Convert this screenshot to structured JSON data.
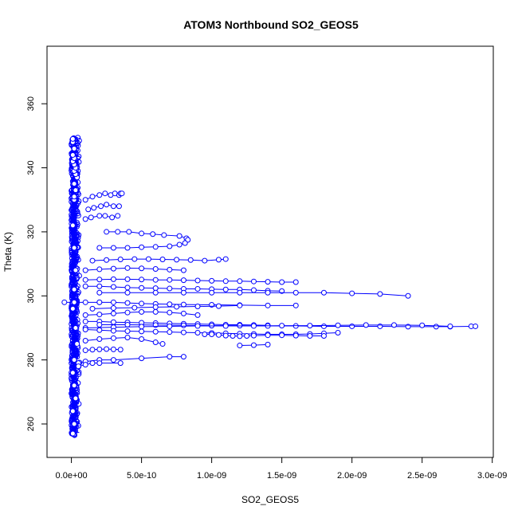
{
  "chart_data": {
    "type": "scatter",
    "title": "ATOM3 Northbound SO2_GEOS5",
    "xlabel": "SO2_GEOS5",
    "ylabel": "Theta (K)",
    "xlim": [
      -1.2e-10,
      3e-09
    ],
    "ylim": [
      249.5,
      378.5
    ],
    "xticks": [
      0,
      5e-10,
      1e-09,
      1.5e-09,
      2e-09,
      2.5e-09,
      3e-09
    ],
    "xtick_labels": [
      "0.0e+00",
      "5.0e-10",
      "1.0e-09",
      "1.5e-09",
      "2.0e-09",
      "2.5e-09",
      "3.0e-09"
    ],
    "yticks": [
      260,
      280,
      300,
      320,
      340,
      360
    ],
    "ytick_labels": [
      "260",
      "280",
      "300",
      "320",
      "340",
      "360"
    ],
    "grid": false,
    "legend": "none",
    "color": "#0000ff",
    "marker": "open-circle",
    "series": [
      {
        "x": [
          1e-11,
          2e-11,
          1e-11,
          3e-11,
          2e-11,
          1e-11,
          2e-11,
          4e-11,
          3e-11,
          1e-11,
          2e-11,
          3e-11,
          2e-11,
          1e-11,
          2e-11
        ],
        "y": [
          257,
          260,
          264,
          268,
          272,
          276,
          280,
          285,
          290,
          296,
          302,
          308,
          315,
          322,
          330
        ]
      },
      {
        "x": [
          2e-11,
          3e-11,
          2e-11,
          4e-11,
          3e-11,
          2e-11,
          3e-11,
          2e-11,
          1e-11,
          2e-11,
          1e-11,
          2e-11,
          1e-11,
          1e-11
        ],
        "y": [
          331,
          333,
          335,
          337,
          338,
          339,
          340,
          341,
          342,
          343,
          344,
          346,
          348,
          349
        ]
      },
      {
        "x": [
          1e-10,
          1.5e-10,
          2e-10,
          2.4e-10,
          2.8e-10,
          3.1e-10,
          3.4e-10,
          3.5e-10,
          3.6e-10
        ],
        "y": [
          330,
          331,
          331.5,
          332,
          331.5,
          332,
          331.5,
          332,
          332
        ]
      },
      {
        "x": [
          1.2e-10,
          1.6e-10,
          2.1e-10,
          2.5e-10,
          3e-10,
          3.4e-10
        ],
        "y": [
          327,
          327.5,
          328,
          328.5,
          328,
          328
        ]
      },
      {
        "x": [
          1e-10,
          1.4e-10,
          2e-10,
          2.4e-10,
          2.9e-10,
          3.3e-10
        ],
        "y": [
          324,
          324.5,
          325,
          325,
          324.5,
          325
        ]
      },
      {
        "x": [
          2.5e-10,
          3.3e-10,
          4.1e-10,
          5e-10,
          5.8e-10,
          6.6e-10,
          7.7e-10,
          8.2e-10,
          8.3e-10
        ],
        "y": [
          320,
          320,
          320,
          319.5,
          319.3,
          319,
          318.7,
          318,
          317.5
        ]
      },
      {
        "x": [
          2e-10,
          3e-10,
          4e-10,
          5e-10,
          6e-10,
          7e-10,
          7.7e-10,
          8.1e-10
        ],
        "y": [
          315,
          315,
          315,
          315.2,
          315.3,
          315.5,
          316,
          316.5
        ]
      },
      {
        "x": [
          1.5e-10,
          2.5e-10,
          3.5e-10,
          4.5e-10,
          5.5e-10,
          6.5e-10,
          7.5e-10,
          8.5e-10,
          9.5e-10,
          1.05e-09,
          1.1e-09
        ],
        "y": [
          311,
          311.2,
          311.4,
          311.5,
          311.5,
          311.4,
          311.3,
          311.2,
          311,
          311.3,
          311.5
        ]
      },
      {
        "x": [
          1e-10,
          2e-10,
          3e-10,
          4e-10,
          5e-10,
          6e-10,
          7e-10,
          8e-10
        ],
        "y": [
          308,
          308.3,
          308.5,
          308.7,
          308.6,
          308.4,
          308.2,
          308
        ]
      },
      {
        "x": [
          1e-10,
          2e-10,
          3e-10,
          4e-10,
          5e-10,
          6e-10,
          7e-10,
          8e-10,
          9e-10,
          1e-09,
          1.1e-09,
          1.2e-09,
          1.3e-09,
          1.4e-09,
          1.5e-09,
          1.6e-09
        ],
        "y": [
          305,
          305.1,
          305.2,
          305.2,
          305.1,
          305,
          305,
          304.9,
          304.8,
          304.7,
          304.6,
          304.6,
          304.5,
          304.4,
          304.3,
          304.3
        ]
      },
      {
        "x": [
          1e-10,
          2e-10,
          3e-10,
          4e-10,
          5e-10,
          6e-10,
          7e-10,
          8e-10,
          9e-10,
          1e-09,
          1.1e-09,
          1.2e-09,
          1.3e-09,
          1.4e-09,
          1.5e-09
        ],
        "y": [
          303,
          303,
          302.8,
          302.6,
          302.5,
          302.4,
          302.3,
          302.2,
          302.2,
          302.1,
          302,
          302,
          301.8,
          301.6,
          301.5
        ]
      },
      {
        "x": [
          2e-10,
          4e-10,
          6e-10,
          8e-10,
          1e-09,
          1.2e-09,
          1.4e-09,
          1.6e-09,
          1.8e-09,
          2e-09,
          2.2e-09,
          2.4e-09
        ],
        "y": [
          301,
          301,
          301,
          301,
          301,
          301,
          301,
          301,
          301,
          300.8,
          300.6,
          300
        ]
      },
      {
        "x": [
          2e-10,
          3e-10,
          4e-10,
          5e-10,
          6e-10,
          7e-10,
          8e-10,
          1e-09,
          1.2e-09,
          1.4e-09,
          1.6e-09
        ],
        "y": [
          298,
          298,
          297.8,
          297.6,
          297.5,
          297.4,
          297.3,
          297.2,
          297.1,
          297,
          297
        ]
      },
      {
        "x": [
          -5e-11,
          2e-11,
          1e-10,
          2e-10
        ],
        "y": [
          298,
          298,
          298,
          298
        ]
      },
      {
        "x": [
          1.5e-10,
          3e-10,
          4.5e-10,
          6e-10,
          7.5e-10,
          9e-10,
          1.05e-09,
          1.2e-09
        ],
        "y": [
          296,
          296.2,
          296.3,
          296.5,
          296.6,
          296.7,
          296.8,
          297
        ]
      },
      {
        "x": [
          1e-10,
          2e-10,
          3e-10,
          4e-10,
          5e-10,
          6e-10,
          7e-10,
          8e-10,
          9e-10
        ],
        "y": [
          294,
          294.2,
          294.5,
          294.8,
          295,
          295,
          294.8,
          294.5,
          294
        ]
      },
      {
        "x": [
          1e-10,
          2e-10,
          3e-10,
          4e-10,
          5e-10,
          6e-10,
          7e-10,
          8e-10,
          9e-10,
          1e-09,
          1.1e-09,
          1.2e-09,
          1.3e-09,
          1.4e-09
        ],
        "y": [
          292,
          292,
          291.8,
          291.7,
          291.6,
          291.5,
          291.4,
          291.3,
          291.2,
          291.1,
          291,
          291,
          290.9,
          290.8
        ]
      },
      {
        "x": [
          2e-10,
          4e-10,
          6e-10,
          8e-10,
          1e-09,
          1.2e-09,
          1.4e-09,
          1.6e-09,
          1.8e-09,
          2e-09,
          2.2e-09,
          2.4e-09,
          2.6e-09,
          2.7e-09,
          2.85e-09,
          2.88e-09
        ],
        "y": [
          291,
          291,
          290.9,
          290.8,
          290.7,
          290.7,
          290.6,
          290.6,
          290.5,
          290.5,
          290.5,
          290.4,
          290.4,
          290.4,
          290.5,
          290.5
        ]
      },
      {
        "x": [
          1e-10,
          3e-10,
          5e-10,
          7e-10,
          9e-10,
          1.1e-09,
          1.3e-09,
          1.5e-09,
          1.7e-09,
          1.9e-09,
          2.1e-09,
          2.3e-09,
          2.5e-09,
          2.7e-09
        ],
        "y": [
          290,
          290.2,
          290.4,
          290.5,
          290.6,
          290.6,
          290.6,
          290.7,
          290.7,
          290.8,
          290.9,
          290.9,
          290.8,
          290.5
        ]
      },
      {
        "x": [
          1e-10,
          2e-10,
          3e-10,
          4e-10,
          5e-10,
          6e-10,
          7e-10,
          8e-10,
          9e-10,
          1e-09,
          1.1e-09,
          1.2e-09,
          1.3e-09,
          1.4e-09,
          1.5e-09,
          1.6e-09,
          1.7e-09,
          1.8e-09,
          1.9e-09
        ],
        "y": [
          289.5,
          289.3,
          289.1,
          289,
          288.9,
          288.8,
          288.7,
          288.6,
          288.5,
          288.4,
          288.3,
          288.2,
          288.1,
          288,
          288,
          288,
          288.1,
          288.3,
          288.5
        ]
      },
      {
        "x": [
          9.5e-10,
          1e-09,
          1.05e-09,
          1.1e-09,
          1.15e-09,
          1.2e-09,
          1.25e-09,
          1.3e-09,
          1.4e-09,
          1.5e-09,
          1.6e-09,
          1.7e-09,
          1.8e-09
        ],
        "y": [
          288,
          288,
          287.8,
          287.6,
          287.5,
          287.4,
          287.5,
          287.6,
          287.7,
          287.7,
          287.6,
          287.5,
          287.5
        ]
      },
      {
        "x": [
          1e-10,
          2e-10,
          3e-10,
          4e-10,
          5e-10,
          6e-10,
          6.5e-10
        ],
        "y": [
          286,
          286.5,
          286.8,
          287,
          286.5,
          285.5,
          285
        ]
      },
      {
        "x": [
          1e-10,
          1.5e-10,
          2e-10,
          2.5e-10,
          3e-10,
          3.5e-10
        ],
        "y": [
          283,
          283.2,
          283.3,
          283.4,
          283.3,
          283.2
        ]
      },
      {
        "x": [
          5e-11,
          1e-10,
          2e-10,
          3e-10,
          5e-10,
          7e-10,
          8e-10
        ],
        "y": [
          279,
          279.5,
          280,
          280,
          280.5,
          281,
          281
        ]
      },
      {
        "x": [
          5e-11,
          1e-10,
          1.5e-10,
          2e-10,
          3.5e-10
        ],
        "y": [
          278,
          278.5,
          279,
          279,
          279
        ]
      },
      {
        "x": [
          1.2e-09,
          1.3e-09,
          1.4e-09
        ],
        "y": [
          284.5,
          284.6,
          284.8
        ]
      }
    ],
    "dense_band": {
      "x_min": 0,
      "x_max": 6e-11,
      "y_min": 256.5,
      "y_max": 349.5
    }
  }
}
